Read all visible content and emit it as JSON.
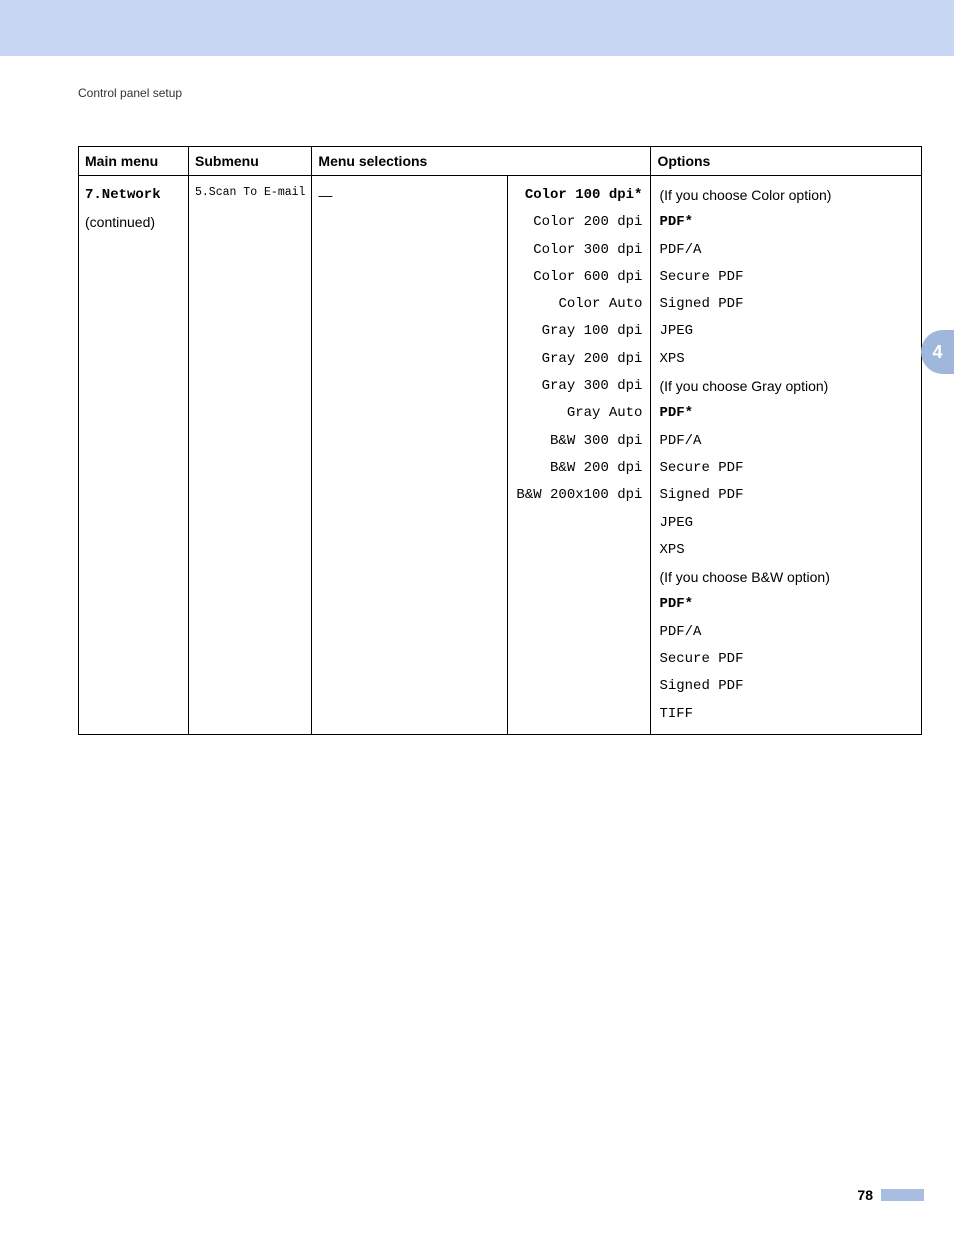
{
  "header": {
    "section_title": "Control panel setup"
  },
  "side_tab": "4",
  "page_number": "78",
  "table": {
    "headers": {
      "main_menu": "Main menu",
      "submenu": "Submenu",
      "menu_selections": "Menu selections",
      "options": "Options"
    },
    "main_menu": {
      "line1": "7.Network",
      "line2": "(continued)"
    },
    "submenu": "5.Scan To E-mail",
    "sel_dash": "—",
    "selections": [
      "Color 100 dpi*",
      "Color 200 dpi",
      "Color 300 dpi",
      "Color 600 dpi",
      "Color Auto",
      "Gray 100 dpi",
      "Gray 200 dpi",
      "Gray 300 dpi",
      "Gray Auto",
      "B&W 300 dpi",
      "B&W 200 dpi",
      "B&W 200x100 dpi"
    ],
    "options": [
      {
        "text": "(If you choose Color option)",
        "style": "sans"
      },
      {
        "text": "PDF*",
        "style": "mono bold"
      },
      {
        "text": "PDF/A",
        "style": "mono"
      },
      {
        "text": "Secure PDF",
        "style": "mono"
      },
      {
        "text": "Signed PDF",
        "style": "mono"
      },
      {
        "text": "JPEG",
        "style": "mono"
      },
      {
        "text": "XPS",
        "style": "mono"
      },
      {
        "text": "(If you choose Gray option)",
        "style": "sans"
      },
      {
        "text": "PDF*",
        "style": "mono bold"
      },
      {
        "text": "PDF/A",
        "style": "mono"
      },
      {
        "text": "Secure PDF",
        "style": "mono"
      },
      {
        "text": "Signed PDF",
        "style": "mono"
      },
      {
        "text": "JPEG",
        "style": "mono"
      },
      {
        "text": "XPS",
        "style": "mono"
      },
      {
        "text": "(If you choose B&W option)",
        "style": "sans"
      },
      {
        "text": "PDF*",
        "style": "mono bold"
      },
      {
        "text": "PDF/A",
        "style": "mono"
      },
      {
        "text": "Secure PDF",
        "style": "mono"
      },
      {
        "text": "Signed PDF",
        "style": "mono"
      },
      {
        "text": "TIFF",
        "style": "mono"
      }
    ]
  },
  "colors": {
    "band": "#c7d6f2",
    "tab": "#9fb7da",
    "footer_bar": "#a8bde0"
  }
}
